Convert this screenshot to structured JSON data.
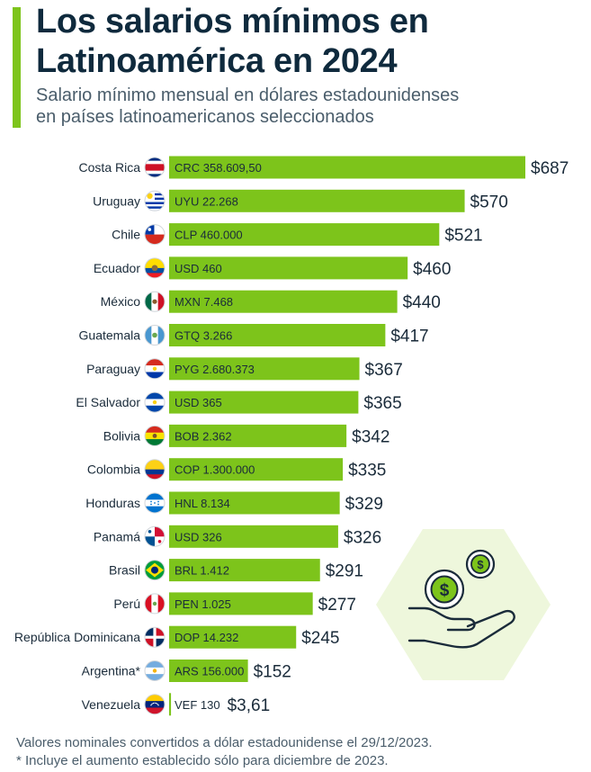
{
  "title_line1": "Los salarios mínimos en",
  "title_line2": "Latinoamérica en 2024",
  "subtitle_line1": "Salario mínimo mensual en dólares estadounidenses",
  "subtitle_line2": "en países latinoamericanos seleccionados",
  "footnote1": "Valores nominales convertidos a dólar estadounidense el 29/12/2023.",
  "footnote2": "* Incluye el aumento establecido sólo para diciembre de 2023.",
  "colors": {
    "bar": "#7dc41b",
    "accent": "#7dc41b",
    "text": "#0f2a3d",
    "illustration_bg": "#eef7dc"
  },
  "illustration": {
    "icon": "hand-holding-dollar-coins-icon"
  },
  "chart_data": {
    "type": "bar",
    "orientation": "horizontal",
    "title": "Los salarios mínimos en Latinoamérica en 2024",
    "xlim": [
      0,
      687
    ],
    "grid": false,
    "categories": [
      "Costa Rica",
      "Uruguay",
      "Chile",
      "Ecuador",
      "México",
      "Guatemala",
      "Paraguay",
      "El Salvador",
      "Bolivia",
      "Colombia",
      "Honduras",
      "Panamá",
      "Brasil",
      "Perú",
      "República Dominicana",
      "Argentina*",
      "Venezuela"
    ],
    "values": [
      687,
      570,
      521,
      460,
      440,
      417,
      367,
      365,
      342,
      335,
      329,
      326,
      291,
      277,
      245,
      152,
      3.61
    ],
    "value_labels": [
      "$687",
      "$570",
      "$521",
      "$460",
      "$440",
      "$417",
      "$367",
      "$365",
      "$342",
      "$335",
      "$329",
      "$326",
      "$291",
      "$277",
      "$245",
      "$152",
      "$3,61"
    ],
    "local_currency_labels": [
      "CRC 358.609,50",
      "UYU 22.268",
      "CLP 460.000",
      "USD 460",
      "MXN 7.468",
      "GTQ 3.266",
      "PYG 2.680.373",
      "USD 365",
      "BOB 2.362",
      "COP 1.300.000",
      "HNL 8.134",
      "USD 326",
      "BRL 1.412",
      "PEN 1.025",
      "DOP 14.232",
      "ARS 156.000",
      "VEF 130"
    ],
    "flags": [
      "costa-rica-flag-icon",
      "uruguay-flag-icon",
      "chile-flag-icon",
      "ecuador-flag-icon",
      "mexico-flag-icon",
      "guatemala-flag-icon",
      "paraguay-flag-icon",
      "el-salvador-flag-icon",
      "bolivia-flag-icon",
      "colombia-flag-icon",
      "honduras-flag-icon",
      "panama-flag-icon",
      "brazil-flag-icon",
      "peru-flag-icon",
      "dominican-republic-flag-icon",
      "argentina-flag-icon",
      "venezuela-flag-icon"
    ]
  }
}
